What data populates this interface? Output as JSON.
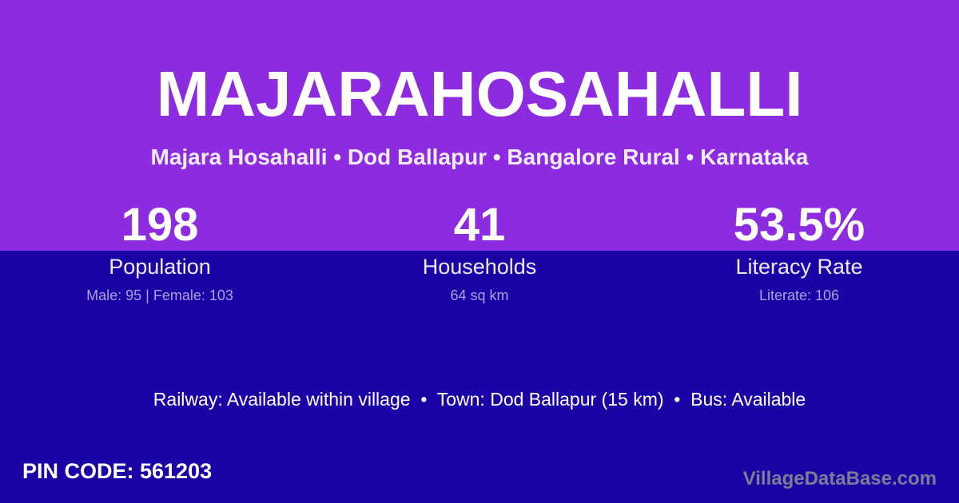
{
  "card": {
    "title": "MAJARAHOSAHALLI",
    "subtitle": "Majara Hosahalli • Dod Ballapur • Bangalore Rural • Karnataka"
  },
  "stats": [
    {
      "value": "198",
      "label": "Population",
      "detail": "Male: 95 | Female: 103"
    },
    {
      "value": "41",
      "label": "Households",
      "detail": "64 sq km"
    },
    {
      "value": "53.5%",
      "label": "Literacy Rate",
      "detail": "Literate: 106"
    }
  ],
  "transport_line": "Railway: Available within village  •  Town: Dod Ballapur (15 km)  •  Bus: Available",
  "footer": {
    "pin_code": "PIN CODE: 561203",
    "watermark": "VillageDataBase.com"
  },
  "colors": {
    "top_background": "#8C2BE0",
    "bottom_background": "#1B04A6",
    "text_primary": "#FFFFFF",
    "text_muted": "#ABA0DC",
    "watermark": "#7C7C96"
  }
}
